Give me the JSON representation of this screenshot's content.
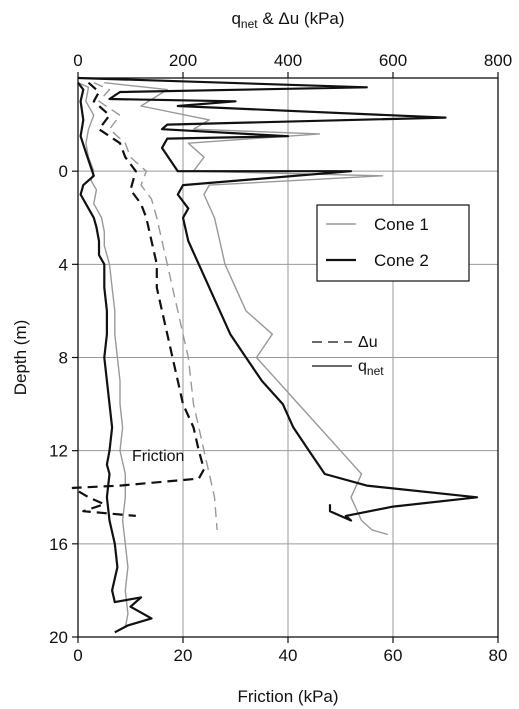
{
  "chart_data": {
    "type": "line",
    "xlabel": "Friction (kPa)",
    "ylabel": "Depth (m)",
    "x2label_main": "q",
    "x2label_sub": "net",
    "x2label_rest": " & Δu (kPa)",
    "xlim": [
      0,
      80
    ],
    "x2lim": [
      0,
      800
    ],
    "ylim": [
      -4,
      20
    ],
    "x_ticks": [
      0,
      20,
      40,
      60,
      80
    ],
    "x2_ticks": [
      0,
      200,
      400,
      600,
      800
    ],
    "y_ticks": [
      0,
      4,
      8,
      12,
      16,
      20
    ],
    "grid": true,
    "y_inverted": true,
    "legend": {
      "placement": "center-right",
      "entries": [
        {
          "label": "Cone 1",
          "color": "#999999"
        },
        {
          "label": "Cone 2",
          "color": "#111111"
        }
      ]
    },
    "style_key": {
      "dashed_label": "Δu",
      "solid_main": "q",
      "solid_sub": "net"
    },
    "annotations": [
      {
        "text": "Friction"
      }
    ],
    "series": [
      {
        "cone": "Cone 1",
        "quantity": "Friction",
        "axis": "bottom",
        "color": "#999999",
        "dash": false,
        "width": 1.4,
        "points": [
          [
            0,
            -3.8
          ],
          [
            2,
            -3.6
          ],
          [
            1.5,
            -3
          ],
          [
            3,
            -2.4
          ],
          [
            2,
            -1.8
          ],
          [
            1.5,
            -1.2
          ],
          [
            2,
            -0.6
          ],
          [
            3,
            0
          ],
          [
            2.5,
            0.4
          ],
          [
            3.5,
            0.8
          ],
          [
            3,
            1.4
          ],
          [
            4.5,
            2
          ],
          [
            5,
            2.6
          ],
          [
            5,
            3.2
          ],
          [
            6,
            4
          ],
          [
            6.5,
            5
          ],
          [
            7,
            6
          ],
          [
            7,
            7
          ],
          [
            7.5,
            8
          ],
          [
            8,
            9
          ],
          [
            8,
            10
          ],
          [
            8.5,
            11
          ],
          [
            8,
            12
          ],
          [
            9,
            13
          ],
          [
            9,
            14
          ],
          [
            8.5,
            15
          ],
          [
            9,
            16
          ],
          [
            9.5,
            17
          ],
          [
            9,
            18
          ],
          [
            9.5,
            19
          ],
          [
            9,
            19.6
          ]
        ]
      },
      {
        "cone": "Cone 2",
        "quantity": "Friction",
        "axis": "bottom",
        "color": "#111111",
        "dash": false,
        "width": 2.2,
        "points": [
          [
            0,
            -3.8
          ],
          [
            1,
            -3.5
          ],
          [
            0.5,
            -3
          ],
          [
            1,
            -2.2
          ],
          [
            0.5,
            -1.5
          ],
          [
            1.5,
            -0.8
          ],
          [
            3,
            0.2
          ],
          [
            1,
            0.6
          ],
          [
            0.5,
            1
          ],
          [
            2,
            1.6
          ],
          [
            3,
            2
          ],
          [
            3.5,
            2.4
          ],
          [
            4,
            3
          ],
          [
            4,
            3.6
          ],
          [
            5,
            4
          ],
          [
            5,
            5
          ],
          [
            5.5,
            6
          ],
          [
            5.5,
            7
          ],
          [
            5,
            8
          ],
          [
            5.5,
            9
          ],
          [
            6,
            10
          ],
          [
            6.5,
            11
          ],
          [
            6,
            12
          ],
          [
            5.5,
            12.6
          ],
          [
            6,
            13
          ],
          [
            5.5,
            14
          ],
          [
            6,
            15
          ],
          [
            7,
            16
          ],
          [
            7.5,
            17
          ],
          [
            6.5,
            18
          ],
          [
            7,
            18.5
          ],
          [
            12,
            18.3
          ],
          [
            10,
            18.7
          ],
          [
            14,
            19.2
          ],
          [
            9.5,
            19.5
          ],
          [
            7,
            19.8
          ]
        ]
      },
      {
        "cone": "Cone 1",
        "quantity": "q_net",
        "axis": "top",
        "color": "#999999",
        "dash": false,
        "width": 1.4,
        "points": [
          [
            50,
            -3.8
          ],
          [
            170,
            -3.5
          ],
          [
            120,
            -2.8
          ],
          [
            250,
            -2.2
          ],
          [
            220,
            -1.8
          ],
          [
            460,
            -1.6
          ],
          [
            210,
            -1.2
          ],
          [
            240,
            -0.6
          ],
          [
            220,
            0
          ],
          [
            580,
            0.2
          ],
          [
            250,
            0.6
          ],
          [
            240,
            1
          ],
          [
            260,
            2
          ],
          [
            270,
            3
          ],
          [
            280,
            4
          ],
          [
            300,
            5
          ],
          [
            320,
            6
          ],
          [
            370,
            7
          ],
          [
            340,
            8
          ],
          [
            380,
            9
          ],
          [
            420,
            10
          ],
          [
            460,
            11
          ],
          [
            500,
            12
          ],
          [
            540,
            13
          ],
          [
            520,
            14
          ],
          [
            540,
            15
          ],
          [
            560,
            15.4
          ],
          [
            590,
            15.6
          ]
        ]
      },
      {
        "cone": "Cone 2",
        "quantity": "q_net",
        "axis": "top",
        "color": "#111111",
        "dash": false,
        "width": 2.2,
        "points": [
          [
            0,
            -4
          ],
          [
            550,
            -3.6
          ],
          [
            80,
            -3.4
          ],
          [
            60,
            -3.1
          ],
          [
            300,
            -3
          ],
          [
            190,
            -2.8
          ],
          [
            700,
            -2.3
          ],
          [
            170,
            -2
          ],
          [
            160,
            -1.8
          ],
          [
            400,
            -1.5
          ],
          [
            170,
            -1.4
          ],
          [
            160,
            -1
          ],
          [
            190,
            0
          ],
          [
            520,
            0
          ],
          [
            200,
            0.6
          ],
          [
            190,
            1
          ],
          [
            210,
            1.6
          ],
          [
            200,
            2
          ],
          [
            210,
            3
          ],
          [
            230,
            4
          ],
          [
            250,
            5
          ],
          [
            270,
            6
          ],
          [
            290,
            7
          ],
          [
            320,
            8
          ],
          [
            350,
            9
          ],
          [
            390,
            10
          ],
          [
            410,
            11
          ],
          [
            440,
            12
          ],
          [
            470,
            13
          ],
          [
            550,
            13.5
          ],
          [
            760,
            14
          ],
          [
            600,
            14.4
          ],
          [
            510,
            14.8
          ],
          [
            520,
            15
          ],
          [
            480,
            14.6
          ],
          [
            480,
            14.3
          ]
        ]
      },
      {
        "cone": "Cone 1",
        "quantity": "Δu",
        "axis": "top",
        "color": "#999999",
        "dash": true,
        "width": 1.4,
        "points": [
          [
            30,
            -3.8
          ],
          [
            60,
            -3.5
          ],
          [
            40,
            -3
          ],
          [
            80,
            -2.4
          ],
          [
            60,
            -1.8
          ],
          [
            90,
            -1.2
          ],
          [
            100,
            -0.6
          ],
          [
            130,
            0
          ],
          [
            120,
            0.6
          ],
          [
            140,
            1.2
          ],
          [
            150,
            2
          ],
          [
            160,
            3
          ],
          [
            170,
            4
          ],
          [
            180,
            5
          ],
          [
            190,
            6
          ],
          [
            200,
            7
          ],
          [
            210,
            8
          ],
          [
            215,
            9
          ],
          [
            220,
            10
          ],
          [
            230,
            11
          ],
          [
            240,
            12
          ],
          [
            250,
            13
          ],
          [
            260,
            14
          ],
          [
            265,
            15.4
          ]
        ]
      },
      {
        "cone": "Cone 2",
        "quantity": "Δu",
        "axis": "top",
        "color": "#111111",
        "dash": true,
        "width": 2.2,
        "points": [
          [
            20,
            -3.8
          ],
          [
            40,
            -3.4
          ],
          [
            30,
            -3
          ],
          [
            60,
            -2.4
          ],
          [
            40,
            -1.8
          ],
          [
            80,
            -1.2
          ],
          [
            90,
            -0.6
          ],
          [
            110,
            0
          ],
          [
            100,
            0.8
          ],
          [
            120,
            1.4
          ],
          [
            130,
            2
          ],
          [
            140,
            3
          ],
          [
            150,
            4
          ],
          [
            150,
            5
          ],
          [
            160,
            6
          ],
          [
            170,
            7
          ],
          [
            180,
            8
          ],
          [
            190,
            9
          ],
          [
            200,
            10
          ],
          [
            220,
            11
          ],
          [
            230,
            12
          ],
          [
            240,
            12.8
          ],
          [
            230,
            13.2
          ],
          [
            80,
            13.5
          ],
          [
            -10,
            13.6
          ],
          [
            20,
            14
          ],
          [
            50,
            14.3
          ],
          [
            10,
            14.6
          ],
          [
            110,
            14.8
          ]
        ]
      }
    ]
  }
}
